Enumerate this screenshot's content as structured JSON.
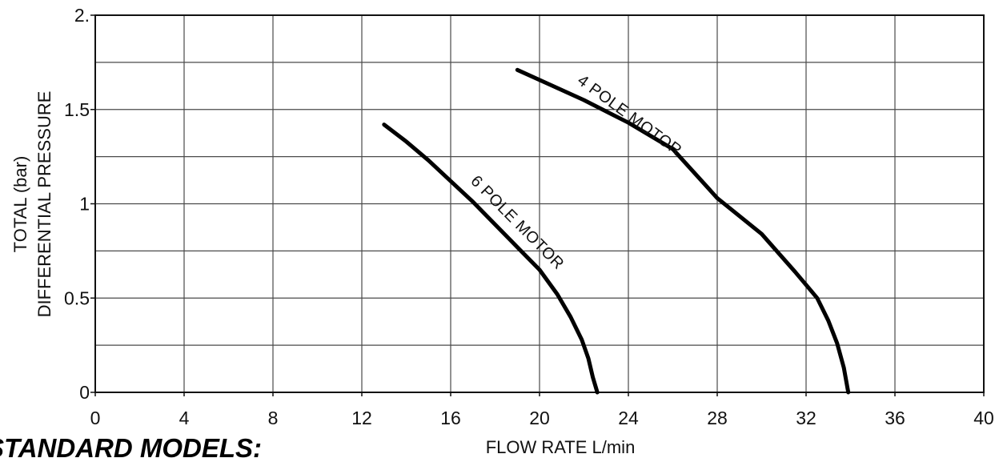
{
  "chart_data": {
    "type": "line",
    "xlabel": "FLOW RATE L/min",
    "ylabel_lines": [
      "TOTAL (bar)",
      "DIFFERENTIAL PRESSURE"
    ],
    "xlim": [
      0,
      40
    ],
    "ylim": [
      0,
      2
    ],
    "x_ticks": [
      0,
      4,
      8,
      12,
      16,
      20,
      24,
      28,
      32,
      36,
      40
    ],
    "x_tick_labels": [
      "0",
      "4",
      "8",
      "12",
      "16",
      "20",
      "24",
      "28",
      "32",
      "36",
      "40"
    ],
    "y_ticks": [
      0,
      0.5,
      1,
      1.5,
      2
    ],
    "y_tick_labels": [
      "0",
      "0.5",
      "1",
      "1.5",
      "2."
    ],
    "y_grid_step": 0.25,
    "grid": true,
    "series": [
      {
        "name": "6 POLE MOTOR",
        "color": "#000000",
        "points": [
          [
            13.0,
            1.42
          ],
          [
            14.0,
            1.33
          ],
          [
            15.0,
            1.23
          ],
          [
            16.0,
            1.12
          ],
          [
            17.0,
            1.01
          ],
          [
            18.0,
            0.89
          ],
          [
            19.0,
            0.77
          ],
          [
            20.0,
            0.65
          ],
          [
            20.8,
            0.52
          ],
          [
            21.4,
            0.4
          ],
          [
            21.9,
            0.28
          ],
          [
            22.2,
            0.18
          ],
          [
            22.4,
            0.08
          ],
          [
            22.6,
            0.0
          ]
        ]
      },
      {
        "name": "4 POLE MOTOR",
        "color": "#000000",
        "points": [
          [
            19.0,
            1.71
          ],
          [
            20.5,
            1.63
          ],
          [
            22.0,
            1.55
          ],
          [
            24.0,
            1.43
          ],
          [
            26.0,
            1.29
          ],
          [
            28.0,
            1.03
          ],
          [
            30.0,
            0.84
          ],
          [
            31.5,
            0.64
          ],
          [
            32.5,
            0.5
          ],
          [
            33.0,
            0.38
          ],
          [
            33.4,
            0.26
          ],
          [
            33.7,
            0.13
          ],
          [
            33.9,
            0.0
          ]
        ]
      }
    ]
  },
  "footer": {
    "text": "STANDARD MODELS:"
  }
}
